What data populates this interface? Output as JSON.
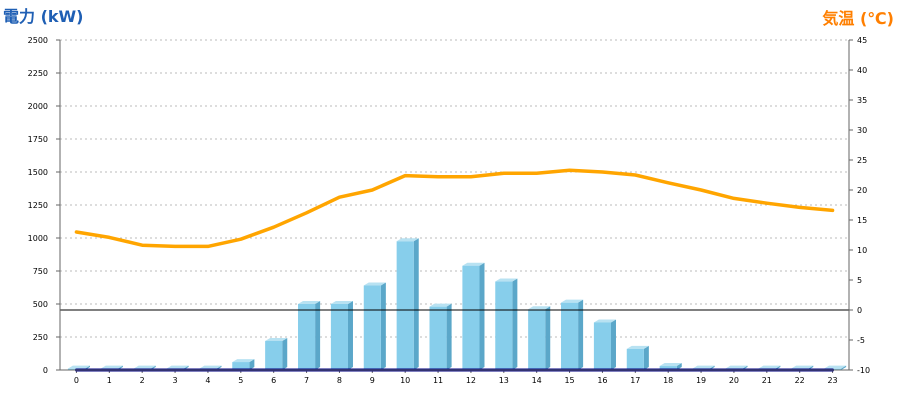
{
  "chart_data": {
    "type": "bar+line",
    "left_axis_title": "電力 (kW)",
    "right_axis_title": "気温 (℃)",
    "categories": [
      "0",
      "1",
      "2",
      "3",
      "4",
      "5",
      "6",
      "7",
      "8",
      "9",
      "10",
      "11",
      "12",
      "13",
      "14",
      "15",
      "16",
      "17",
      "18",
      "19",
      "20",
      "21",
      "22",
      "23"
    ],
    "left_ticks": [
      0,
      250,
      500,
      750,
      1000,
      1250,
      1500,
      1750,
      2000,
      2250,
      2500
    ],
    "right_ticks": [
      -10,
      -5,
      0,
      5,
      10,
      15,
      20,
      25,
      30,
      35,
      40,
      45
    ],
    "left_ylim": [
      0,
      2500
    ],
    "right_ylim": [
      -10,
      45
    ],
    "zero_line_temp": 0,
    "grid": "horizontal-dashed",
    "series": [
      {
        "kind": "bar",
        "axis": "left",
        "values": [
          10,
          10,
          10,
          10,
          10,
          60,
          220,
          500,
          500,
          640,
          975,
          480,
          790,
          670,
          460,
          510,
          360,
          160,
          30,
          10,
          10,
          10,
          10,
          10
        ],
        "color": "#87ceeb",
        "shadow": "#5ba7c9"
      },
      {
        "kind": "line",
        "axis": "left",
        "color": "#000080",
        "x": [
          0,
          0.5,
          1,
          1.5,
          2,
          2.5,
          3,
          3.5,
          4,
          4.3,
          4.6,
          5,
          5.3,
          5.6,
          5.9,
          6.1,
          6.3,
          6.5,
          6.7,
          6.9,
          7.1,
          7.3,
          7.5,
          7.7,
          7.9,
          8.1,
          8.3,
          8.5,
          8.7,
          8.9,
          9.1,
          9.3,
          9.5,
          9.7,
          9.9,
          10.1,
          10.3,
          10.5,
          10.7,
          10.9,
          11.1,
          11.3,
          11.5,
          11.7,
          11.9,
          12.1,
          12.3,
          12.5,
          12.7,
          12.9,
          13.1,
          13.3,
          13.5,
          13.7,
          13.9,
          14.1,
          14.3,
          14.5,
          14.7,
          14.9,
          15.1,
          15.3,
          15.5,
          15.7,
          15.9,
          16.1,
          16.3,
          16.5,
          16.7,
          16.9,
          17.1,
          17.3,
          17.5,
          17.7,
          17.9,
          18.5,
          19,
          20,
          21,
          22,
          23
        ],
        "values": [
          0,
          0,
          0,
          0,
          0,
          0,
          0,
          0,
          0,
          0,
          0,
          0,
          0,
          0,
          0,
          0,
          0,
          0,
          0,
          0,
          0,
          0,
          0,
          0,
          0,
          0,
          0,
          0,
          0,
          0,
          0,
          0,
          0,
          0,
          0,
          0,
          0,
          0,
          0,
          0,
          0,
          0,
          0,
          0,
          0,
          0,
          0,
          0,
          0,
          0,
          0,
          0,
          0,
          0,
          0,
          0,
          0,
          0,
          0,
          0,
          0,
          0,
          0,
          0,
          0,
          0,
          0,
          0,
          0,
          0,
          0,
          0,
          0,
          0,
          0,
          0,
          0,
          0,
          0,
          0,
          0
        ]
      },
      {
        "kind": "line",
        "axis": "right",
        "color": "#ffa500",
        "x": [
          0,
          1,
          2,
          3,
          4,
          5,
          6,
          7,
          8,
          9,
          10,
          11,
          12,
          13,
          14,
          15,
          16,
          17,
          18,
          19,
          20,
          21,
          22,
          23
        ],
        "values": [
          13,
          12.1,
          10.8,
          10.6,
          10.6,
          11.8,
          13.8,
          16.2,
          18.8,
          20,
          22.4,
          22.2,
          22.2,
          22.8,
          22.8,
          23.3,
          23,
          22.5,
          21.2,
          20,
          18.6,
          17.8,
          17.1,
          16.6
        ]
      }
    ]
  }
}
